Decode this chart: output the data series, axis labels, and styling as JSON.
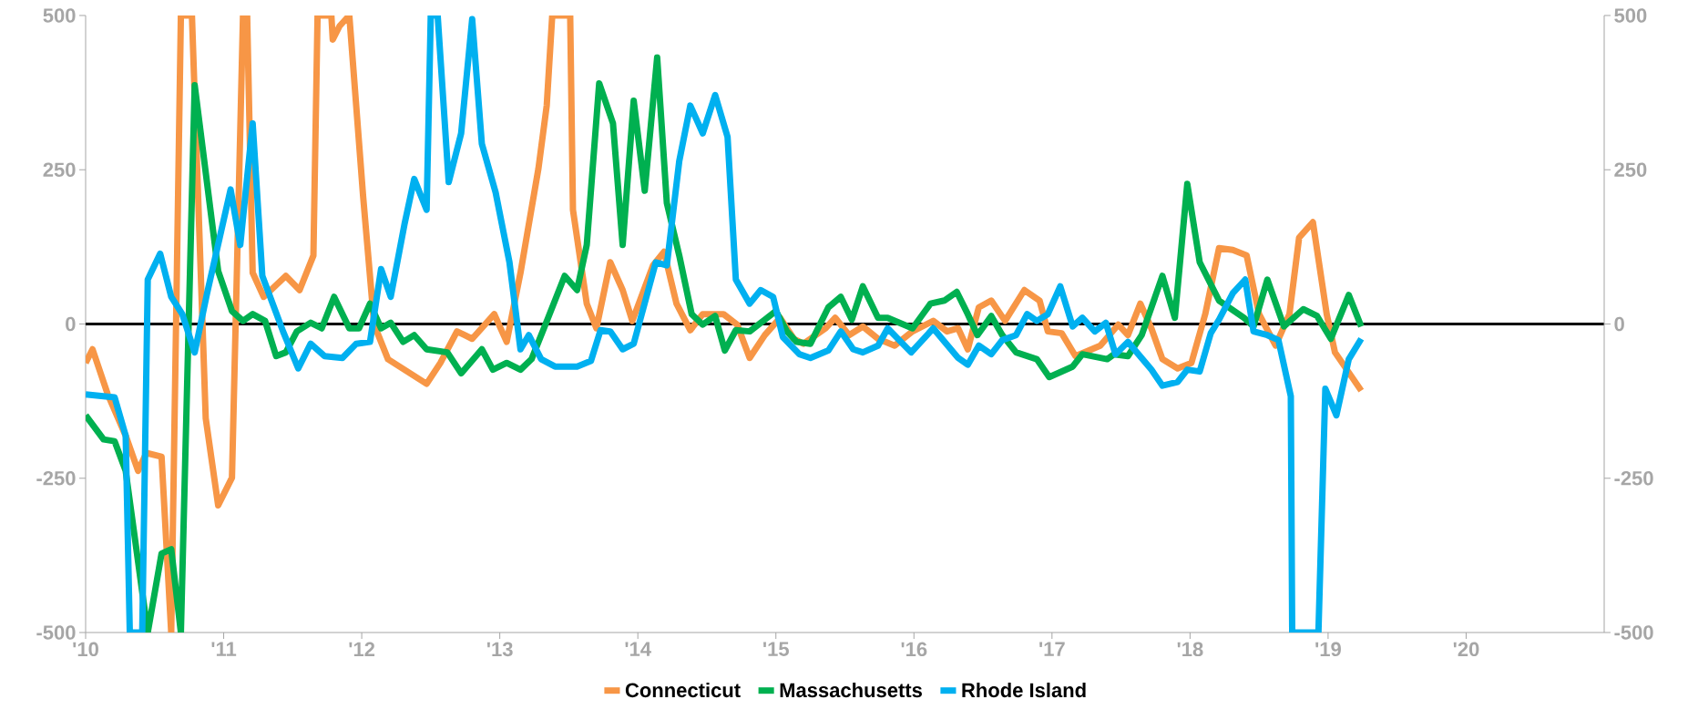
{
  "chart_data": {
    "type": "line",
    "xlim": [
      2010,
      2021
    ],
    "xticks": [
      {
        "value": 2010,
        "label": "'10"
      },
      {
        "value": 2011,
        "label": "'11"
      },
      {
        "value": 2012,
        "label": "'12"
      },
      {
        "value": 2013,
        "label": "'13"
      },
      {
        "value": 2014,
        "label": "'14"
      },
      {
        "value": 2015,
        "label": "'15"
      },
      {
        "value": 2016,
        "label": "'16"
      },
      {
        "value": 2017,
        "label": "'17"
      },
      {
        "value": 2018,
        "label": "'18"
      },
      {
        "value": 2019,
        "label": "'19"
      },
      {
        "value": 2020,
        "label": "'20"
      }
    ],
    "ylim": [
      -500,
      500
    ],
    "yticks": [
      -500,
      -250,
      0,
      250,
      500
    ],
    "y2lim": [
      -500,
      500
    ],
    "y2ticks": [
      -500,
      -250,
      0,
      250,
      500
    ],
    "ref_lines": [
      {
        "axis": "y",
        "value": 0,
        "color": "#000000"
      }
    ],
    "legend": "bottom",
    "line_style": "solid",
    "series": [
      {
        "name": "Connecticut",
        "color": "#f79646",
        "x": [
          2010.0,
          2010.05,
          2010.16,
          2010.29,
          2010.38,
          2010.44,
          2010.55,
          2010.62,
          2010.69,
          2010.77,
          2010.87,
          2010.96,
          2011.06,
          2011.14,
          2011.17,
          2011.21,
          2011.29,
          2011.45,
          2011.55,
          2011.65,
          2011.68,
          2011.78,
          2011.79,
          2011.84,
          2011.91,
          2012.01,
          2012.09,
          2012.19,
          2012.47,
          2012.57,
          2012.69,
          2012.8,
          2012.96,
          2013.05,
          2013.15,
          2013.28,
          2013.34,
          2013.38,
          2013.51,
          2013.53,
          2013.63,
          2013.7,
          2013.8,
          2013.89,
          2013.96,
          2014.11,
          2014.19,
          2014.28,
          2014.38,
          2014.47,
          2014.62,
          2014.72,
          2014.81,
          2014.92,
          2015.03,
          2015.13,
          2015.2,
          2015.36,
          2015.43,
          2015.53,
          2015.63,
          2015.74,
          2015.86,
          2015.99,
          2016.14,
          2016.24,
          2016.32,
          2016.39,
          2016.47,
          2016.56,
          2016.66,
          2016.8,
          2016.91,
          2016.97,
          2017.07,
          2017.17,
          2017.35,
          2017.48,
          2017.55,
          2017.64,
          2017.72,
          2017.8,
          2017.91,
          2018.01,
          2018.11,
          2018.21,
          2018.31,
          2018.41,
          2018.5,
          2018.62,
          2018.72,
          2018.79,
          2018.89,
          2018.99,
          2019.05,
          2019.24
        ],
        "values": [
          -63,
          -41,
          -114,
          -181,
          -238,
          -209,
          -215,
          -500,
          500,
          500,
          -153,
          -294,
          -249,
          500,
          500,
          83,
          44,
          78,
          55,
          111,
          500,
          500,
          461,
          483,
          500,
          207,
          -1,
          -57,
          -97,
          -63,
          -12,
          -24,
          16,
          -29,
          83,
          252,
          354,
          500,
          500,
          185,
          33,
          -7,
          100,
          55,
          5,
          95,
          117,
          33,
          -10,
          16,
          16,
          -1,
          -55,
          -18,
          10,
          -24,
          -32,
          -7,
          10,
          -18,
          -4,
          -24,
          -35,
          -12,
          5,
          -12,
          -7,
          -41,
          27,
          38,
          5,
          55,
          38,
          -12,
          -15,
          -52,
          -35,
          -1,
          -18,
          33,
          -7,
          -57,
          -72,
          -63,
          16,
          123,
          120,
          111,
          16,
          -35,
          16,
          140,
          165,
          16,
          -46,
          -108
        ]
      },
      {
        "name": "Massachusetts",
        "color": "#00b050",
        "x": [
          2010.0,
          2010.13,
          2010.21,
          2010.29,
          2010.45,
          2010.55,
          2010.62,
          2010.69,
          2010.79,
          2010.96,
          2011.06,
          2011.14,
          2011.21,
          2011.3,
          2011.38,
          2011.45,
          2011.53,
          2011.63,
          2011.71,
          2011.8,
          2011.91,
          2011.98,
          2012.06,
          2012.14,
          2012.21,
          2012.3,
          2012.38,
          2012.47,
          2012.62,
          2012.72,
          2012.87,
          2012.95,
          2013.05,
          2013.15,
          2013.23,
          2013.35,
          2013.47,
          2013.56,
          2013.63,
          2013.72,
          2013.82,
          2013.89,
          2013.97,
          2014.05,
          2014.14,
          2014.21,
          2014.3,
          2014.39,
          2014.47,
          2014.56,
          2014.63,
          2014.71,
          2014.81,
          2014.92,
          2015.0,
          2015.08,
          2015.15,
          2015.25,
          2015.38,
          2015.47,
          2015.55,
          2015.63,
          2015.74,
          2015.81,
          2015.99,
          2016.12,
          2016.22,
          2016.31,
          2016.39,
          2016.46,
          2016.56,
          2016.64,
          2016.74,
          2016.89,
          2016.98,
          2017.15,
          2017.22,
          2017.4,
          2017.45,
          2017.55,
          2017.65,
          2017.8,
          2017.89,
          2017.98,
          2018.07,
          2018.21,
          2018.39,
          2018.46,
          2018.56,
          2018.68,
          2018.82,
          2018.92,
          2019.02,
          2019.15,
          2019.24
        ],
        "values": [
          -148,
          -187,
          -190,
          -238,
          -500,
          -372,
          -365,
          -500,
          387,
          86,
          21,
          5,
          16,
          5,
          -52,
          -46,
          -12,
          2,
          -7,
          44,
          -7,
          -7,
          33,
          -7,
          2,
          -29,
          -18,
          -41,
          -46,
          -80,
          -41,
          -74,
          -63,
          -74,
          -57,
          10,
          78,
          55,
          128,
          390,
          325,
          128,
          362,
          216,
          432,
          196,
          111,
          16,
          -1,
          13,
          -43,
          -10,
          -12,
          7,
          21,
          -12,
          -29,
          -32,
          27,
          44,
          7,
          61,
          10,
          10,
          -7,
          33,
          38,
          52,
          16,
          -18,
          13,
          -18,
          -46,
          -57,
          -86,
          -69,
          -49,
          -57,
          -49,
          -52,
          -18,
          78,
          10,
          227,
          100,
          38,
          10,
          -4,
          72,
          -4,
          24,
          13,
          -24,
          47,
          -4
        ]
      },
      {
        "name": "Rhode Island",
        "color": "#00b0f0",
        "x": [
          2010.0,
          2010.21,
          2010.29,
          2010.32,
          2010.41,
          2010.45,
          2010.54,
          2010.62,
          2010.7,
          2010.79,
          2010.88,
          2011.05,
          2011.12,
          2011.21,
          2011.28,
          2011.43,
          2011.54,
          2011.63,
          2011.73,
          2011.86,
          2011.96,
          2012.06,
          2012.14,
          2012.21,
          2012.31,
          2012.38,
          2012.47,
          2012.5,
          2012.55,
          2012.63,
          2012.72,
          2012.8,
          2012.87,
          2012.97,
          2013.07,
          2013.15,
          2013.21,
          2013.3,
          2013.4,
          2013.56,
          2013.66,
          2013.73,
          2013.8,
          2013.89,
          2013.97,
          2014.13,
          2014.21,
          2014.3,
          2014.38,
          2014.47,
          2014.56,
          2014.65,
          2014.71,
          2014.81,
          2014.89,
          2014.98,
          2015.05,
          2015.17,
          2015.25,
          2015.38,
          2015.47,
          2015.56,
          2015.63,
          2015.74,
          2015.81,
          2015.98,
          2016.14,
          2016.32,
          2016.39,
          2016.47,
          2016.56,
          2016.64,
          2016.74,
          2016.82,
          2016.89,
          2016.97,
          2017.06,
          2017.15,
          2017.22,
          2017.31,
          2017.39,
          2017.46,
          2017.55,
          2017.72,
          2017.8,
          2017.91,
          2017.98,
          2018.07,
          2018.15,
          2018.21,
          2018.31,
          2018.4,
          2018.46,
          2018.56,
          2018.64,
          2018.73,
          2018.74,
          2018.93,
          2018.98,
          2019.06,
          2019.15,
          2019.24
        ],
        "values": [
          -114,
          -119,
          -181,
          -500,
          -500,
          72,
          114,
          44,
          16,
          -46,
          50,
          218,
          128,
          325,
          78,
          -12,
          -72,
          -32,
          -52,
          -55,
          -32,
          -29,
          89,
          44,
          162,
          235,
          185,
          500,
          500,
          230,
          309,
          494,
          292,
          213,
          100,
          -41,
          -18,
          -57,
          -69,
          -69,
          -60,
          -10,
          -12,
          -41,
          -32,
          100,
          95,
          264,
          354,
          309,
          371,
          303,
          72,
          33,
          55,
          44,
          -21,
          -49,
          -55,
          -43,
          -12,
          -41,
          -46,
          -35,
          -7,
          -46,
          -7,
          -55,
          -66,
          -35,
          -49,
          -26,
          -18,
          16,
          5,
          16,
          61,
          -4,
          10,
          -12,
          2,
          -49,
          -29,
          -74,
          -100,
          -94,
          -74,
          -77,
          -15,
          7,
          50,
          72,
          -12,
          -18,
          -26,
          -117,
          -500,
          -500,
          -105,
          -148,
          -57,
          -24
        ]
      }
    ]
  }
}
